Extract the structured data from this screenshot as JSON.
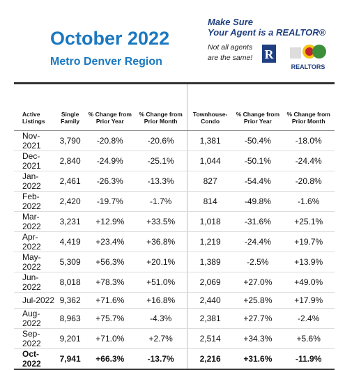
{
  "header": {
    "title": "October 2022",
    "subtitle": "Metro Denver Region",
    "promo": {
      "line1": "Make Sure",
      "line2": "Your Agent is a REALTOR®",
      "note1": "Not all agents",
      "note2": "are the same!",
      "logo_text": "REALTORS"
    }
  },
  "table": {
    "columns": [
      "Active Listings",
      "Single Family",
      "% Change from Prior Year",
      "% Change from Prior Month",
      "Townhouse-Condo",
      "% Change from Prior Year",
      "% Change from Prior Month"
    ],
    "rows": [
      [
        "Nov-2021",
        "3,790",
        "-20.8%",
        "-20.6%",
        "1,381",
        "-50.4%",
        "-18.0%"
      ],
      [
        "Dec-2021",
        "2,840",
        "-24.9%",
        "-25.1%",
        "1,044",
        "-50.1%",
        "-24.4%"
      ],
      [
        "Jan-2022",
        "2,461",
        "-26.3%",
        "-13.3%",
        "827",
        "-54.4%",
        "-20.8%"
      ],
      [
        "Feb-2022",
        "2,420",
        "-19.7%",
        "-1.7%",
        "814",
        "-49.8%",
        "-1.6%"
      ],
      [
        "Mar-2022",
        "3,231",
        "+12.9%",
        "+33.5%",
        "1,018",
        "-31.6%",
        "+25.1%"
      ],
      [
        "Apr-2022",
        "4,419",
        "+23.4%",
        "+36.8%",
        "1,219",
        "-24.4%",
        "+19.7%"
      ],
      [
        "May-2022",
        "5,309",
        "+56.3%",
        "+20.1%",
        "1,389",
        "-2.5%",
        "+13.9%"
      ],
      [
        "Jun-2022",
        "8,018",
        "+78.3%",
        "+51.0%",
        "2,069",
        "+27.0%",
        "+49.0%"
      ],
      [
        "Jul-2022",
        "9,362",
        "+71.6%",
        "+16.8%",
        "2,440",
        "+25.8%",
        "+17.9%"
      ],
      [
        "Aug-2022",
        "8,963",
        "+75.7%",
        "-4.3%",
        "2,381",
        "+27.7%",
        "-2.4%"
      ],
      [
        "Sep-2022",
        "9,201",
        "+71.0%",
        "+2.7%",
        "2,514",
        "+34.3%",
        "+5.6%"
      ],
      [
        "Oct-2022",
        "7,941",
        "+66.3%",
        "-13.7%",
        "2,216",
        "+31.6%",
        "-11.9%"
      ]
    ]
  }
}
